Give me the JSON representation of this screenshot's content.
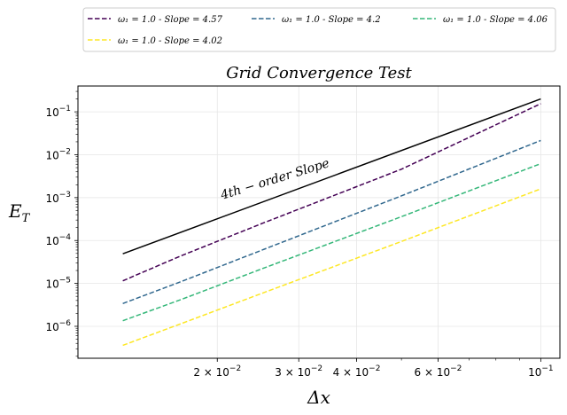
{
  "chart_data": {
    "type": "line",
    "title": "Grid Convergence Test",
    "xlabel": "Δx",
    "ylabel": "E_T",
    "xscale": "log",
    "yscale": "log",
    "xlim": [
      0.01,
      0.11
    ],
    "ylim": [
      1.8e-07,
      0.4
    ],
    "grid": true,
    "legend": {
      "placement": "top",
      "columns": 3
    },
    "x_ticks": [
      {
        "value": 0.02,
        "mantissa": "2 × 10",
        "exp": "−2"
      },
      {
        "value": 0.03,
        "mantissa": "3 × 10",
        "exp": "−2"
      },
      {
        "value": 0.04,
        "mantissa": "4 × 10",
        "exp": "−2"
      },
      {
        "value": 0.06,
        "mantissa": "6 × 10",
        "exp": "−2"
      },
      {
        "value": 0.1,
        "mantissa": "10",
        "exp": "−1"
      }
    ],
    "y_ticks": [
      {
        "value": 1e-06,
        "mantissa": "10",
        "exp": "−6"
      },
      {
        "value": 1e-05,
        "mantissa": "10",
        "exp": "−5"
      },
      {
        "value": 0.0001,
        "mantissa": "10",
        "exp": "−4"
      },
      {
        "value": 0.001,
        "mantissa": "10",
        "exp": "−3"
      },
      {
        "value": 0.01,
        "mantissa": "10",
        "exp": "−2"
      },
      {
        "value": 0.1,
        "mantissa": "10",
        "exp": "−1"
      }
    ],
    "reference": {
      "name": "4th-order reference",
      "color": "#000000",
      "x": [
        0.0125,
        0.1
      ],
      "y": [
        4.9e-05,
        0.2
      ]
    },
    "annotation": {
      "text": "4th − order  Slope",
      "x": 0.0268,
      "y": 0.0022,
      "angle_deg": -17
    },
    "series": [
      {
        "name": "ω1 = 1.0 -  Slope = 4.57",
        "legend_label": "ω₁ = 1.0 -  Slope = 4.57",
        "color": "#440154",
        "x": [
          0.0125,
          0.0167,
          0.025,
          0.05,
          0.1
        ],
        "y": [
          1.15e-05,
          4.4e-05,
          0.00025,
          0.0046,
          0.155
        ]
      },
      {
        "name": "ω1 = 1.0 -  Slope = 4.2",
        "legend_label": "ω₁ = 1.0 -  Slope = 4.2",
        "color": "#31688e",
        "x": [
          0.0125,
          0.0167,
          0.025,
          0.05,
          0.1
        ],
        "y": [
          3.4e-06,
          1.1e-05,
          6e-05,
          0.0011,
          0.0215
        ]
      },
      {
        "name": "ω1 = 1.0 -  Slope = 4.06",
        "legend_label": "ω₁ = 1.0 -  Slope = 4.06",
        "color": "#35b779",
        "x": [
          0.0125,
          0.0167,
          0.025,
          0.05,
          0.1
        ],
        "y": [
          1.35e-06,
          4.2e-06,
          2.2e-05,
          0.00036,
          0.0062
        ]
      },
      {
        "name": "ω1 = 1.0 -  Slope = 4.02",
        "legend_label": "ω₁ = 1.0 -  Slope = 4.02",
        "color": "#fde725",
        "x": [
          0.0125,
          0.0167,
          0.025,
          0.05,
          0.1
        ],
        "y": [
          3.6e-07,
          1.15e-06,
          5.9e-06,
          9.5e-05,
          0.0016
        ]
      }
    ]
  }
}
